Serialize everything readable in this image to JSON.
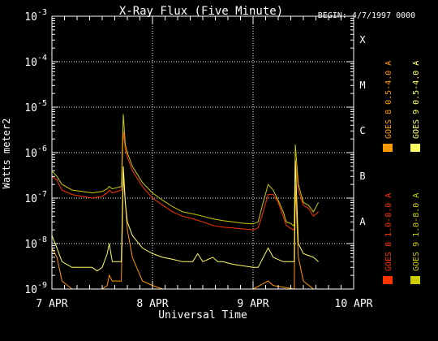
{
  "chart_data": {
    "type": "line",
    "title": "X-Ray Flux (Five Minute)",
    "begin_label": "BEGIN: 4/7/1997 0000",
    "xlabel": "Universal Time",
    "ylabel": "Watts meter2",
    "x_unit": "days since 1997-04-07 00:00 UT",
    "xlim": [
      0,
      3
    ],
    "ylim": [
      1e-09,
      0.001
    ],
    "y_scale": "log",
    "grid": true,
    "x_ticks": [
      {
        "x": 0,
        "label": "7 APR"
      },
      {
        "x": 1,
        "label": "8 APR"
      },
      {
        "x": 2,
        "label": "9 APR"
      },
      {
        "x": 3,
        "label": "10 APR"
      }
    ],
    "y_ticks": [
      {
        "exp": -9,
        "base": "10",
        "sup": "-9"
      },
      {
        "exp": -8,
        "base": "10",
        "sup": "-8"
      },
      {
        "exp": -7,
        "base": "10",
        "sup": "-7"
      },
      {
        "exp": -6,
        "base": "10",
        "sup": "-6"
      },
      {
        "exp": -5,
        "base": "10",
        "sup": "-5"
      },
      {
        "exp": -4,
        "base": "10",
        "sup": "-4"
      },
      {
        "exp": -3,
        "base": "10",
        "sup": "-3"
      }
    ],
    "flare_classes": [
      {
        "exp": -8,
        "label": "A"
      },
      {
        "exp": -7,
        "label": "B"
      },
      {
        "exp": -6,
        "label": "C"
      },
      {
        "exp": -5,
        "label": "M"
      },
      {
        "exp": -4,
        "label": "X"
      }
    ],
    "legend_position": "right",
    "legend": [
      {
        "label": "GOES 8 1.0-8.0 A",
        "color": "#ff3300"
      },
      {
        "label": "GOES 8 0.5-4.0 A",
        "color": "#ff9900"
      },
      {
        "label": "GOES 9 1.0-8.0 A",
        "color": "#cccc00"
      },
      {
        "label": "GOES 9 0.5-4.0 A",
        "color": "#ffff66"
      }
    ],
    "series": [
      {
        "name": "GOES 8 1.0-8.0 A",
        "color": "#ff3300",
        "points": [
          [
            0,
            3e-07
          ],
          [
            0.05,
            2.5e-07
          ],
          [
            0.1,
            1.5e-07
          ],
          [
            0.2,
            1.2e-07
          ],
          [
            0.3,
            1.1e-07
          ],
          [
            0.4,
            1e-07
          ],
          [
            0.5,
            1.1e-07
          ],
          [
            0.55,
            1.3e-07
          ],
          [
            0.57,
            1.5e-07
          ],
          [
            0.6,
            1.3e-07
          ],
          [
            0.69,
            1.5e-07
          ],
          [
            0.71,
            3e-06
          ],
          [
            0.73,
            1.2e-06
          ],
          [
            0.75,
            8e-07
          ],
          [
            0.8,
            4e-07
          ],
          [
            0.9,
            1.8e-07
          ],
          [
            1.0,
            1e-07
          ],
          [
            1.1,
            7e-08
          ],
          [
            1.2,
            5e-08
          ],
          [
            1.3,
            4e-08
          ],
          [
            1.4,
            3.5e-08
          ],
          [
            1.5,
            3e-08
          ],
          [
            1.6,
            2.5e-08
          ],
          [
            1.7,
            2.3e-08
          ],
          [
            1.8,
            2.2e-08
          ],
          [
            1.9,
            2.1e-08
          ],
          [
            2.0,
            2e-08
          ],
          [
            2.05,
            2.2e-08
          ],
          [
            2.1,
            5e-08
          ],
          [
            2.15,
            1.2e-07
          ],
          [
            2.2,
            1.2e-07
          ],
          [
            2.25,
            8e-08
          ],
          [
            2.3,
            4e-08
          ],
          [
            2.33,
            2.5e-08
          ],
          [
            2.37,
            2.2e-08
          ],
          [
            2.4,
            2e-08
          ],
          [
            2.41,
            2e-08
          ],
          [
            2.42,
            7e-07
          ],
          [
            2.45,
            1.5e-07
          ],
          [
            2.5,
            7e-08
          ],
          [
            2.55,
            6e-08
          ],
          [
            2.6,
            4e-08
          ],
          [
            2.65,
            5e-08
          ]
        ]
      },
      {
        "name": "GOES 8 0.5-4.0 A",
        "color": "#ff9900",
        "points": [
          [
            0,
            8e-09
          ],
          [
            0.05,
            5e-09
          ],
          [
            0.1,
            1.5e-09
          ],
          [
            0.2,
            1e-09
          ],
          [
            0.3,
            1e-09
          ],
          [
            0.4,
            1e-09
          ],
          [
            0.5,
            1e-09
          ],
          [
            0.55,
            1.2e-09
          ],
          [
            0.57,
            2e-09
          ],
          [
            0.6,
            1.5e-09
          ],
          [
            0.69,
            1.5e-09
          ],
          [
            0.71,
            3e-07
          ],
          [
            0.73,
            8e-08
          ],
          [
            0.75,
            2e-08
          ],
          [
            0.8,
            5e-09
          ],
          [
            0.9,
            1.5e-09
          ],
          [
            1.0,
            1.2e-09
          ],
          [
            1.1,
            1e-09
          ],
          [
            1.3,
            1e-09
          ],
          [
            1.6,
            1e-09
          ],
          [
            2.0,
            1e-09
          ],
          [
            2.15,
            1.5e-09
          ],
          [
            2.2,
            1.2e-09
          ],
          [
            2.41,
            1e-09
          ],
          [
            2.42,
            2e-07
          ],
          [
            2.45,
            5e-09
          ],
          [
            2.5,
            1.5e-09
          ],
          [
            2.6,
            1e-09
          ],
          [
            2.65,
            1e-09
          ]
        ]
      },
      {
        "name": "GOES 9 1.0-8.0 A",
        "color": "#cccc00",
        "points": [
          [
            0,
            4e-07
          ],
          [
            0.05,
            3e-07
          ],
          [
            0.1,
            2e-07
          ],
          [
            0.2,
            1.5e-07
          ],
          [
            0.3,
            1.4e-07
          ],
          [
            0.4,
            1.3e-07
          ],
          [
            0.5,
            1.4e-07
          ],
          [
            0.55,
            1.6e-07
          ],
          [
            0.57,
            1.8e-07
          ],
          [
            0.6,
            1.6e-07
          ],
          [
            0.69,
            1.8e-07
          ],
          [
            0.71,
            7e-06
          ],
          [
            0.73,
            1.5e-06
          ],
          [
            0.75,
            1e-06
          ],
          [
            0.8,
            5e-07
          ],
          [
            0.9,
            2.2e-07
          ],
          [
            1.0,
            1.3e-07
          ],
          [
            1.1,
            9e-08
          ],
          [
            1.2,
            6.5e-08
          ],
          [
            1.3,
            5e-08
          ],
          [
            1.4,
            4.5e-08
          ],
          [
            1.5,
            4e-08
          ],
          [
            1.6,
            3.5e-08
          ],
          [
            1.7,
            3.2e-08
          ],
          [
            1.8,
            3e-08
          ],
          [
            1.9,
            2.8e-08
          ],
          [
            2.0,
            2.7e-08
          ],
          [
            2.05,
            3e-08
          ],
          [
            2.1,
            8e-08
          ],
          [
            2.15,
            2e-07
          ],
          [
            2.2,
            1.5e-07
          ],
          [
            2.25,
            9e-08
          ],
          [
            2.3,
            5e-08
          ],
          [
            2.33,
            3e-08
          ],
          [
            2.37,
            2.8e-08
          ],
          [
            2.4,
            2.5e-08
          ],
          [
            2.41,
            2.5e-08
          ],
          [
            2.42,
            1.5e-06
          ],
          [
            2.45,
            2e-07
          ],
          [
            2.5,
            8e-08
          ],
          [
            2.55,
            7e-08
          ],
          [
            2.6,
            5e-08
          ],
          [
            2.65,
            8e-08
          ]
        ]
      },
      {
        "name": "GOES 9 0.5-4.0 A",
        "color": "#ffff66",
        "points": [
          [
            0,
            1.5e-08
          ],
          [
            0.05,
            8e-09
          ],
          [
            0.1,
            4e-09
          ],
          [
            0.2,
            3e-09
          ],
          [
            0.3,
            3e-09
          ],
          [
            0.4,
            3e-09
          ],
          [
            0.45,
            2.5e-09
          ],
          [
            0.5,
            3e-09
          ],
          [
            0.55,
            6e-09
          ],
          [
            0.57,
            1e-08
          ],
          [
            0.6,
            4e-09
          ],
          [
            0.69,
            4e-09
          ],
          [
            0.71,
            5e-07
          ],
          [
            0.73,
            8e-08
          ],
          [
            0.75,
            3e-08
          ],
          [
            0.8,
            1.5e-08
          ],
          [
            0.9,
            8e-09
          ],
          [
            1.0,
            6e-09
          ],
          [
            1.1,
            5e-09
          ],
          [
            1.2,
            4.5e-09
          ],
          [
            1.3,
            4e-09
          ],
          [
            1.4,
            4e-09
          ],
          [
            1.45,
            6e-09
          ],
          [
            1.5,
            4e-09
          ],
          [
            1.6,
            5e-09
          ],
          [
            1.65,
            4e-09
          ],
          [
            1.7,
            4e-09
          ],
          [
            1.8,
            3.5e-09
          ],
          [
            2.0,
            3e-09
          ],
          [
            2.05,
            3e-09
          ],
          [
            2.15,
            8e-09
          ],
          [
            2.2,
            5e-09
          ],
          [
            2.3,
            4e-09
          ],
          [
            2.41,
            4e-09
          ],
          [
            2.42,
            7e-07
          ],
          [
            2.45,
            1e-08
          ],
          [
            2.5,
            6e-09
          ],
          [
            2.6,
            5e-09
          ],
          [
            2.65,
            4e-09
          ]
        ]
      }
    ]
  }
}
